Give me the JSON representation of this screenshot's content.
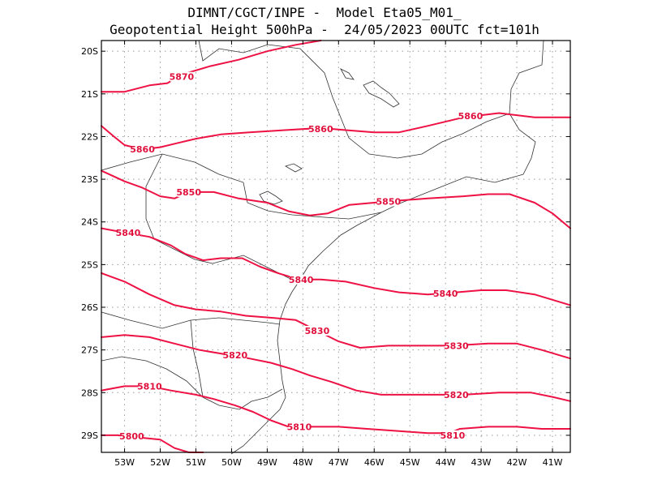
{
  "header": {
    "line1": "DIMNT/CGCT/INPE -  Model Eta05_M01_",
    "line2": "Geopotential Height 500hPa -  24/05/2023 00UTC fct=101h"
  },
  "chart_data": {
    "type": "contour-map",
    "variable": "Geopotential Height 500hPa",
    "lon_range": [
      -53.65,
      -40.5
    ],
    "lat_range": [
      -29.4,
      -19.75
    ],
    "grid": true,
    "lat_ticks": [
      {
        "value": -20,
        "label": "20S"
      },
      {
        "value": -21,
        "label": "21S"
      },
      {
        "value": -22,
        "label": "22S"
      },
      {
        "value": -23,
        "label": "23S"
      },
      {
        "value": -24,
        "label": "24S"
      },
      {
        "value": -25,
        "label": "25S"
      },
      {
        "value": -26,
        "label": "26S"
      },
      {
        "value": -27,
        "label": "27S"
      },
      {
        "value": -28,
        "label": "28S"
      },
      {
        "value": -29,
        "label": "29S"
      }
    ],
    "lon_ticks": [
      {
        "value": -53,
        "label": "53W"
      },
      {
        "value": -52,
        "label": "52W"
      },
      {
        "value": -51,
        "label": "51W"
      },
      {
        "value": -50,
        "label": "50W"
      },
      {
        "value": -49,
        "label": "49W"
      },
      {
        "value": -48,
        "label": "48W"
      },
      {
        "value": -47,
        "label": "47W"
      },
      {
        "value": -46,
        "label": "46W"
      },
      {
        "value": -45,
        "label": "45W"
      },
      {
        "value": -44,
        "label": "44W"
      },
      {
        "value": -43,
        "label": "43W"
      },
      {
        "value": -42,
        "label": "42W"
      },
      {
        "value": -41,
        "label": "41W"
      }
    ],
    "contours": [
      {
        "value": 5870,
        "points": [
          [
            -53.65,
            -20.95
          ],
          [
            -53,
            -20.95
          ],
          [
            -52.3,
            -20.8
          ],
          [
            -51.8,
            -20.75
          ],
          [
            -51.4,
            -20.55
          ],
          [
            -50.6,
            -20.35
          ],
          [
            -49.8,
            -20.2
          ],
          [
            -49,
            -20.0
          ],
          [
            -48.2,
            -19.85
          ],
          [
            -47.5,
            -19.75
          ]
        ]
      },
      {
        "value": 5860,
        "points": [
          [
            -53.65,
            -21.75
          ],
          [
            -53.3,
            -22.0
          ],
          [
            -53,
            -22.2
          ],
          [
            -52.5,
            -22.3
          ],
          [
            -52,
            -22.25
          ],
          [
            -51.5,
            -22.15
          ],
          [
            -51,
            -22.05
          ],
          [
            -50.3,
            -21.95
          ],
          [
            -49.5,
            -21.9
          ],
          [
            -48.5,
            -21.85
          ],
          [
            -47.5,
            -21.8
          ],
          [
            -46.8,
            -21.85
          ],
          [
            -46,
            -21.9
          ],
          [
            -45.3,
            -21.9
          ],
          [
            -44.5,
            -21.75
          ],
          [
            -43.5,
            -21.55
          ],
          [
            -42.5,
            -21.45
          ],
          [
            -41.5,
            -21.55
          ],
          [
            -40.5,
            -21.55
          ]
        ]
      },
      {
        "value": 5850,
        "points": [
          [
            -53.65,
            -22.8
          ],
          [
            -53,
            -23.05
          ],
          [
            -52.5,
            -23.2
          ],
          [
            -52,
            -23.4
          ],
          [
            -51.6,
            -23.45
          ],
          [
            -51.2,
            -23.3
          ],
          [
            -50.5,
            -23.3
          ],
          [
            -49.8,
            -23.45
          ],
          [
            -49,
            -23.55
          ],
          [
            -48.4,
            -23.75
          ],
          [
            -47.8,
            -23.85
          ],
          [
            -47.3,
            -23.8
          ],
          [
            -46.7,
            -23.6
          ],
          [
            -46,
            -23.55
          ],
          [
            -45.3,
            -23.5
          ],
          [
            -44.5,
            -23.45
          ],
          [
            -43.5,
            -23.4
          ],
          [
            -42.8,
            -23.35
          ],
          [
            -42.2,
            -23.35
          ],
          [
            -41.5,
            -23.55
          ],
          [
            -41,
            -23.8
          ],
          [
            -40.5,
            -24.15
          ]
        ]
      },
      {
        "value": 5840,
        "points": [
          [
            -53.65,
            -24.15
          ],
          [
            -53,
            -24.25
          ],
          [
            -52.3,
            -24.35
          ],
          [
            -51.7,
            -24.55
          ],
          [
            -51.3,
            -24.75
          ],
          [
            -50.8,
            -24.9
          ],
          [
            -50.3,
            -24.85
          ],
          [
            -49.7,
            -24.85
          ],
          [
            -49.2,
            -25.05
          ],
          [
            -48.7,
            -25.2
          ],
          [
            -48.1,
            -25.35
          ],
          [
            -47.5,
            -25.35
          ],
          [
            -46.8,
            -25.4
          ],
          [
            -46,
            -25.55
          ],
          [
            -45.3,
            -25.65
          ],
          [
            -44.5,
            -25.7
          ],
          [
            -43.7,
            -25.65
          ],
          [
            -43,
            -25.6
          ],
          [
            -42.3,
            -25.6
          ],
          [
            -41.5,
            -25.7
          ],
          [
            -40.5,
            -25.95
          ]
        ]
      },
      {
        "value": 5830,
        "points": [
          [
            -53.65,
            -25.2
          ],
          [
            -53,
            -25.4
          ],
          [
            -52.3,
            -25.7
          ],
          [
            -51.6,
            -25.95
          ],
          [
            -51,
            -26.05
          ],
          [
            -50.3,
            -26.1
          ],
          [
            -49.6,
            -26.2
          ],
          [
            -48.8,
            -26.25
          ],
          [
            -48.2,
            -26.3
          ],
          [
            -47.6,
            -26.55
          ],
          [
            -47,
            -26.8
          ],
          [
            -46.4,
            -26.95
          ],
          [
            -45.6,
            -26.9
          ],
          [
            -44.6,
            -26.9
          ],
          [
            -43.8,
            -26.9
          ],
          [
            -42.8,
            -26.85
          ],
          [
            -42,
            -26.85
          ],
          [
            -41.3,
            -27.0
          ],
          [
            -40.5,
            -27.2
          ]
        ]
      },
      {
        "value": 5820,
        "points": [
          [
            -53.65,
            -26.7
          ],
          [
            -53,
            -26.65
          ],
          [
            -52.3,
            -26.7
          ],
          [
            -51.6,
            -26.85
          ],
          [
            -50.9,
            -27.0
          ],
          [
            -50.2,
            -27.1
          ],
          [
            -49.5,
            -27.2
          ],
          [
            -48.9,
            -27.3
          ],
          [
            -48.3,
            -27.45
          ],
          [
            -47.8,
            -27.6
          ],
          [
            -47.2,
            -27.75
          ],
          [
            -46.5,
            -27.95
          ],
          [
            -45.8,
            -28.05
          ],
          [
            -45,
            -28.05
          ],
          [
            -44.2,
            -28.05
          ],
          [
            -43.5,
            -28.05
          ],
          [
            -42.5,
            -28.0
          ],
          [
            -41.6,
            -28.0
          ],
          [
            -41,
            -28.1
          ],
          [
            -40.5,
            -28.2
          ]
        ]
      },
      {
        "value": 5810,
        "points": [
          [
            -53.65,
            -27.95
          ],
          [
            -53,
            -27.85
          ],
          [
            -52.3,
            -27.85
          ],
          [
            -51.7,
            -27.95
          ],
          [
            -51,
            -28.05
          ],
          [
            -50.5,
            -28.15
          ],
          [
            -49.9,
            -28.3
          ],
          [
            -49.4,
            -28.45
          ],
          [
            -48.9,
            -28.65
          ],
          [
            -48.4,
            -28.8
          ],
          [
            -47.8,
            -28.8
          ],
          [
            -47,
            -28.8
          ],
          [
            -46.2,
            -28.85
          ],
          [
            -45.3,
            -28.9
          ],
          [
            -44.5,
            -28.95
          ],
          [
            -43.9,
            -28.95
          ],
          [
            -43.6,
            -28.85
          ],
          [
            -42.8,
            -28.8
          ],
          [
            -42,
            -28.8
          ],
          [
            -41.3,
            -28.85
          ],
          [
            -40.5,
            -28.85
          ]
        ]
      },
      {
        "value": 5800,
        "points": [
          [
            -53.65,
            -29.0
          ],
          [
            -53.2,
            -29.0
          ],
          [
            -52.6,
            -29.05
          ],
          [
            -52,
            -29.1
          ],
          [
            -51.6,
            -29.3
          ],
          [
            -51.2,
            -29.4
          ],
          [
            -50.8,
            -29.4
          ]
        ]
      }
    ],
    "contour_labels": [
      {
        "value": 5870,
        "lon": -51.4,
        "lat": -20.6
      },
      {
        "value": 5860,
        "lon": -52.5,
        "lat": -22.3
      },
      {
        "value": 5860,
        "lon": -47.5,
        "lat": -21.82
      },
      {
        "value": 5860,
        "lon": -43.3,
        "lat": -21.52
      },
      {
        "value": 5850,
        "lon": -51.2,
        "lat": -23.3
      },
      {
        "value": 5850,
        "lon": -45.6,
        "lat": -23.52
      },
      {
        "value": 5840,
        "lon": -52.9,
        "lat": -24.25
      },
      {
        "value": 5840,
        "lon": -48.05,
        "lat": -25.35
      },
      {
        "value": 5840,
        "lon": -44.0,
        "lat": -25.68
      },
      {
        "value": 5830,
        "lon": -47.6,
        "lat": -26.55
      },
      {
        "value": 5830,
        "lon": -43.7,
        "lat": -26.9
      },
      {
        "value": 5820,
        "lon": -49.9,
        "lat": -27.12
      },
      {
        "value": 5820,
        "lon": -43.7,
        "lat": -28.05
      },
      {
        "value": 5810,
        "lon": -52.3,
        "lat": -27.85
      },
      {
        "value": 5810,
        "lon": -48.1,
        "lat": -28.8
      },
      {
        "value": 5810,
        "lon": -43.8,
        "lat": -29.0
      },
      {
        "value": 5800,
        "lon": -52.8,
        "lat": -29.02
      }
    ]
  }
}
